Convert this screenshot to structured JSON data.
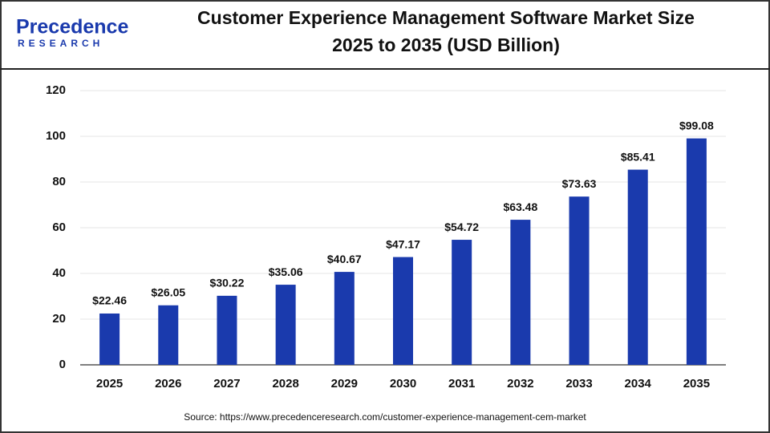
{
  "logo": {
    "name": "Precedence",
    "tagline": "RESEARCH"
  },
  "chart_data": {
    "type": "bar",
    "title": "Customer Experience Management Software Market Size",
    "subtitle": "2025 to 2035 (USD Billion)",
    "categories": [
      "2025",
      "2026",
      "2027",
      "2028",
      "2029",
      "2030",
      "2031",
      "2032",
      "2033",
      "2034",
      "2035"
    ],
    "values": [
      22.46,
      26.05,
      30.22,
      35.06,
      40.67,
      47.17,
      54.72,
      63.48,
      73.63,
      85.41,
      99.08
    ],
    "value_labels": [
      "$22.46",
      "$26.05",
      "$30.22",
      "$35.06",
      "$40.67",
      "$47.17",
      "$54.72",
      "$63.48",
      "$73.63",
      "$85.41",
      "$99.08"
    ],
    "color": "#1a3aad",
    "ylim": [
      0,
      120
    ],
    "yticks": [
      0,
      20,
      40,
      60,
      80,
      100,
      120
    ],
    "grid": true,
    "source": "Source: https://www.precedenceresearch.com/customer-experience-management-cem-market"
  }
}
